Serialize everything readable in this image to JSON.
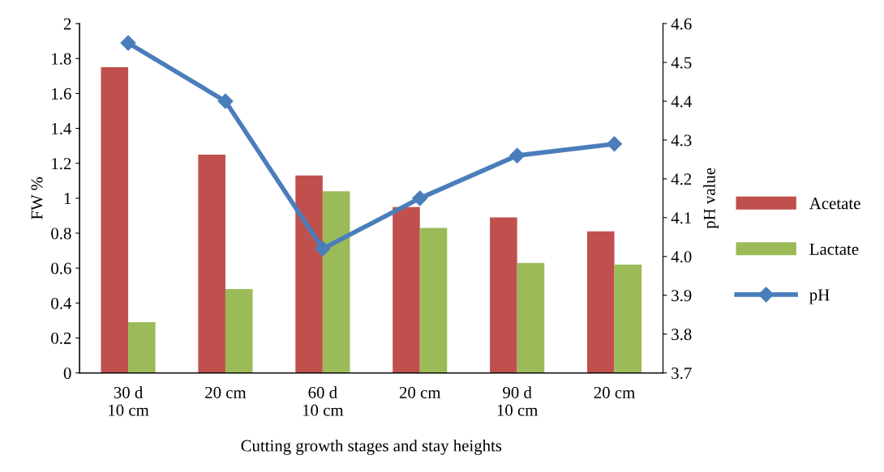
{
  "chart_data": {
    "type": "bar",
    "xlabel": "Cutting growth stages and stay heights",
    "ylabel": "FW %",
    "y2label": "pH value",
    "categories": [
      "30 d\n10 cm",
      "20 cm",
      "60 d\n10 cm",
      "20 cm",
      "90 d\n10 cm",
      "20 cm"
    ],
    "series": [
      {
        "name": "Acetate",
        "color": "#c0504d",
        "values": [
          1.75,
          1.25,
          1.13,
          0.95,
          0.89,
          0.81
        ]
      },
      {
        "name": "Lactate",
        "color": "#9bbb59",
        "values": [
          0.29,
          0.48,
          1.04,
          0.83,
          0.63,
          0.62
        ]
      },
      {
        "name": "pH",
        "type": "line",
        "axis": "y2",
        "color": "#4a7ebb",
        "marker": "diamond",
        "values": [
          4.55,
          4.4,
          4.02,
          4.15,
          4.26,
          4.29
        ]
      }
    ],
    "ylim": [
      0,
      2
    ],
    "yticks": [
      0,
      0.2,
      0.4,
      0.6,
      0.8,
      1,
      1.2,
      1.4,
      1.6,
      1.8,
      2
    ],
    "y2lim": [
      3.7,
      4.6
    ],
    "y2ticks": [
      3.7,
      3.8,
      3.9,
      {
        "value": 4,
        "label": "4.0"
      },
      4.1,
      4.2,
      4.3,
      4.4,
      4.5,
      4.6
    ],
    "grid": false,
    "legend": "right"
  }
}
